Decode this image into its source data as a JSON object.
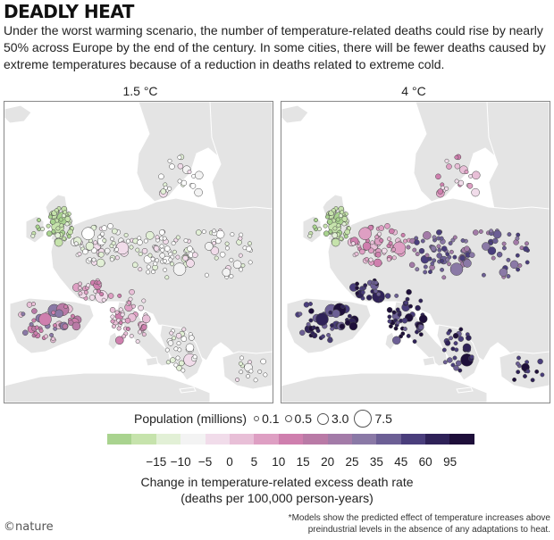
{
  "header": {
    "title": "DEADLY HEAT",
    "subtitle": "Under the worst warming scenario, the number of temperature-related deaths could rise by nearly 50% across Europe by the end of the century. In some cities, there will be fewer deaths caused by extreme temperatures because of a reduction in deaths related to extreme cold."
  },
  "panels": [
    {
      "label": "1.5 °C",
      "scenario": "low"
    },
    {
      "label": "4 °C",
      "scenario": "high"
    }
  ],
  "population_legend": {
    "label": "Population (millions)",
    "items": [
      {
        "label": "0.1",
        "value": 0.1
      },
      {
        "label": "0.5",
        "value": 0.5
      },
      {
        "label": "3.0",
        "value": 3.0
      },
      {
        "label": "7.5",
        "value": 7.5
      }
    ]
  },
  "color_scale": {
    "colors": [
      "#a9d38f",
      "#c6e3ac",
      "#e2f0d6",
      "#f3f3f3",
      "#f1dcea",
      "#e8bfd7",
      "#de9fc3",
      "#cf7fae",
      "#b97aa6",
      "#a37ba8",
      "#8a79a6",
      "#6c5f95",
      "#4a3e7c",
      "#2f2258",
      "#1e0f3a"
    ],
    "ticks": [
      "−15",
      "−10",
      "−5",
      "0",
      "5",
      "10",
      "15",
      "20",
      "25",
      "35",
      "45",
      "60",
      "95"
    ],
    "title_line1": "Change in temperature-related excess death rate",
    "title_line2": "(deaths per 100,000 person-years)"
  },
  "credit": "©nature",
  "footnote": "*Models show the predicted effect of temperature increases above preindustrial levels in the absence of any adaptations to heat."
}
